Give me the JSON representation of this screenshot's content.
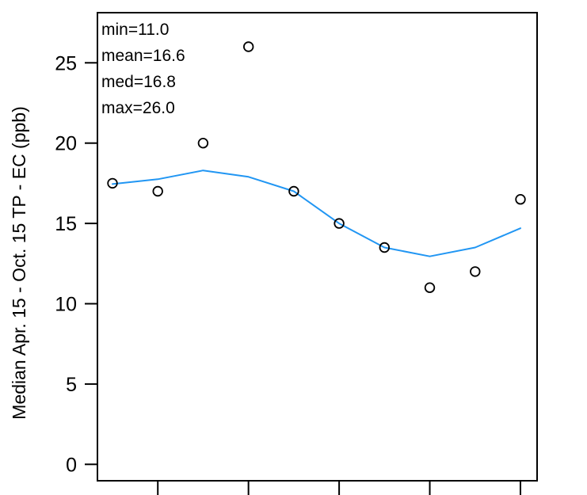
{
  "chart_data": {
    "type": "scatter",
    "title": "",
    "xlabel": "",
    "ylabel": "Median Apr. 15 - Oct. 15 TP - EC (ppb)",
    "x_index": [
      1,
      2,
      3,
      4,
      5,
      6,
      7,
      8,
      9,
      10
    ],
    "points": [
      17.5,
      17.0,
      20.0,
      26.0,
      17.0,
      15.0,
      13.5,
      11.0,
      12.0,
      16.5
    ],
    "smooth_line": [
      17.45,
      17.75,
      18.3,
      17.9,
      17.0,
      15.0,
      13.5,
      12.95,
      13.5,
      14.7
    ],
    "yticks": [
      0,
      5,
      10,
      15,
      20,
      25
    ],
    "ylim": [
      -1.0,
      27.5
    ],
    "xticks_at_index": [
      2,
      4,
      6,
      8,
      10
    ],
    "xtick_labels_visible": false,
    "annotations": [
      "min=11.0",
      "mean=16.6",
      "med=16.8",
      "max=26.0"
    ],
    "stats": {
      "min": 11.0,
      "mean": 16.6,
      "med": 16.8,
      "max": 26.0
    },
    "marker": "open-circle",
    "legend": "none",
    "grid": false,
    "colors": {
      "smooth_line": "#2196F3",
      "points": "#000000",
      "axis": "#000000",
      "background": "#FFFFFF"
    }
  }
}
